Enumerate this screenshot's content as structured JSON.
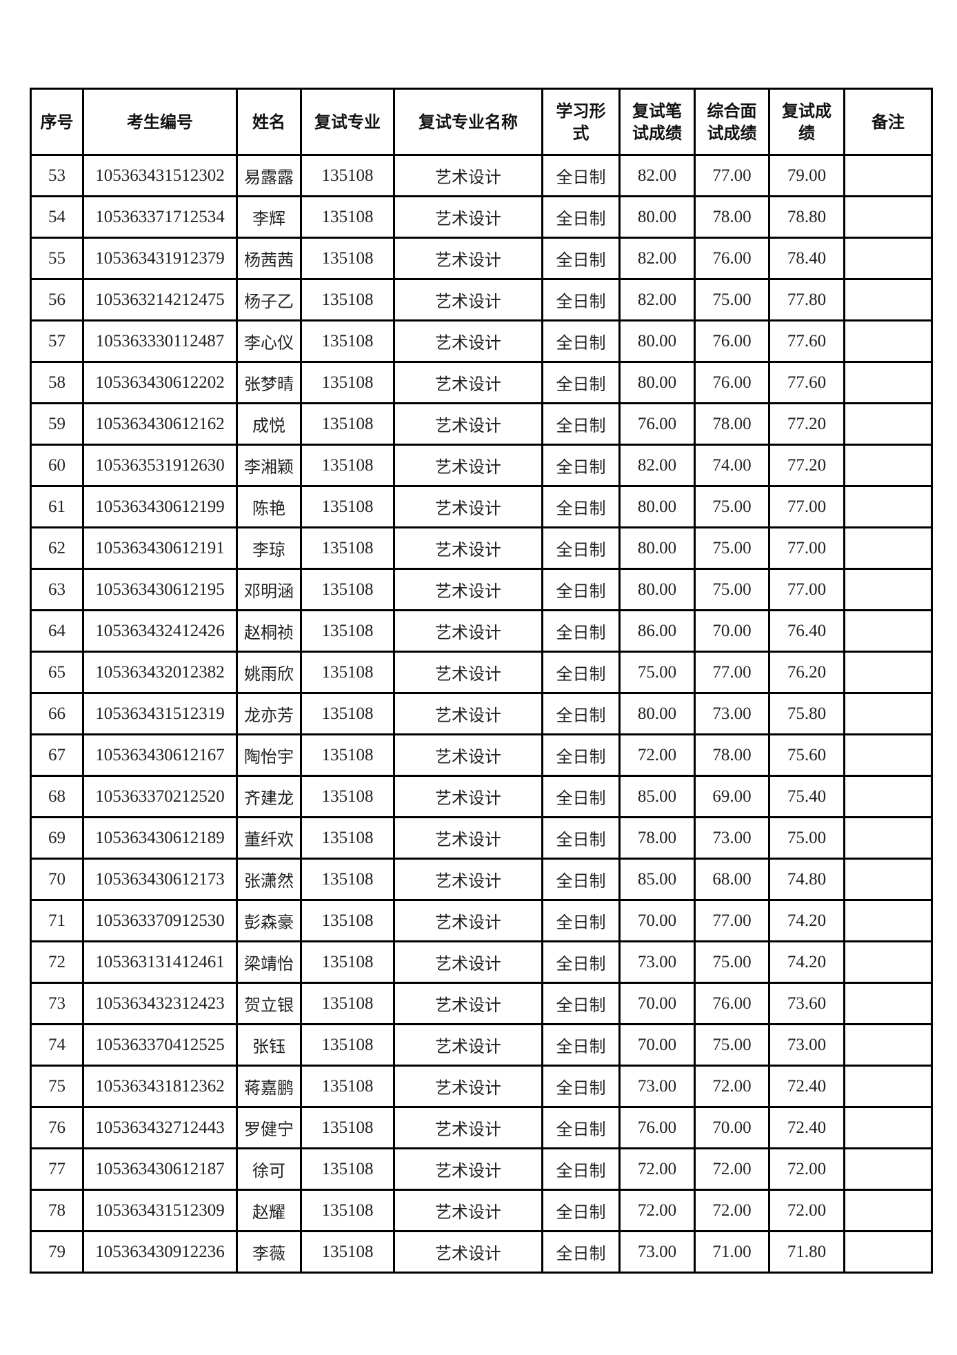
{
  "table": {
    "headers": [
      "序号",
      "考生编号",
      "姓名",
      "复试专业",
      "复试专业名称",
      "学习形式",
      "复试笔试成绩",
      "综合面试成绩",
      "复试成绩",
      "备注"
    ],
    "header_lines": [
      [
        "序号"
      ],
      [
        "考生编号"
      ],
      [
        "姓名"
      ],
      [
        "复试专业"
      ],
      [
        "复试专业名称"
      ],
      [
        "学习形",
        "式"
      ],
      [
        "复试笔",
        "试成绩"
      ],
      [
        "综合面",
        "试成绩"
      ],
      [
        "复试成",
        "绩"
      ],
      [
        "备注"
      ]
    ],
    "rows": [
      [
        "53",
        "105363431512302",
        "易露露",
        "135108",
        "艺术设计",
        "全日制",
        "82.00",
        "77.00",
        "79.00",
        ""
      ],
      [
        "54",
        "105363371712534",
        "李辉",
        "135108",
        "艺术设计",
        "全日制",
        "80.00",
        "78.00",
        "78.80",
        ""
      ],
      [
        "55",
        "105363431912379",
        "杨茜茜",
        "135108",
        "艺术设计",
        "全日制",
        "82.00",
        "76.00",
        "78.40",
        ""
      ],
      [
        "56",
        "105363214212475",
        "杨子乙",
        "135108",
        "艺术设计",
        "全日制",
        "82.00",
        "75.00",
        "77.80",
        ""
      ],
      [
        "57",
        "105363330112487",
        "李心仪",
        "135108",
        "艺术设计",
        "全日制",
        "80.00",
        "76.00",
        "77.60",
        ""
      ],
      [
        "58",
        "105363430612202",
        "张梦晴",
        "135108",
        "艺术设计",
        "全日制",
        "80.00",
        "76.00",
        "77.60",
        ""
      ],
      [
        "59",
        "105363430612162",
        "成悦",
        "135108",
        "艺术设计",
        "全日制",
        "76.00",
        "78.00",
        "77.20",
        ""
      ],
      [
        "60",
        "105363531912630",
        "李湘颖",
        "135108",
        "艺术设计",
        "全日制",
        "82.00",
        "74.00",
        "77.20",
        ""
      ],
      [
        "61",
        "105363430612199",
        "陈艳",
        "135108",
        "艺术设计",
        "全日制",
        "80.00",
        "75.00",
        "77.00",
        ""
      ],
      [
        "62",
        "105363430612191",
        "李琼",
        "135108",
        "艺术设计",
        "全日制",
        "80.00",
        "75.00",
        "77.00",
        ""
      ],
      [
        "63",
        "105363430612195",
        "邓明涵",
        "135108",
        "艺术设计",
        "全日制",
        "80.00",
        "75.00",
        "77.00",
        ""
      ],
      [
        "64",
        "105363432412426",
        "赵桐祯",
        "135108",
        "艺术设计",
        "全日制",
        "86.00",
        "70.00",
        "76.40",
        ""
      ],
      [
        "65",
        "105363432012382",
        "姚雨欣",
        "135108",
        "艺术设计",
        "全日制",
        "75.00",
        "77.00",
        "76.20",
        ""
      ],
      [
        "66",
        "105363431512319",
        "龙亦芳",
        "135108",
        "艺术设计",
        "全日制",
        "80.00",
        "73.00",
        "75.80",
        ""
      ],
      [
        "67",
        "105363430612167",
        "陶怡宇",
        "135108",
        "艺术设计",
        "全日制",
        "72.00",
        "78.00",
        "75.60",
        ""
      ],
      [
        "68",
        "105363370212520",
        "齐建龙",
        "135108",
        "艺术设计",
        "全日制",
        "85.00",
        "69.00",
        "75.40",
        ""
      ],
      [
        "69",
        "105363430612189",
        "董纤欢",
        "135108",
        "艺术设计",
        "全日制",
        "78.00",
        "73.00",
        "75.00",
        ""
      ],
      [
        "70",
        "105363430612173",
        "张潇然",
        "135108",
        "艺术设计",
        "全日制",
        "85.00",
        "68.00",
        "74.80",
        ""
      ],
      [
        "71",
        "105363370912530",
        "彭森豪",
        "135108",
        "艺术设计",
        "全日制",
        "70.00",
        "77.00",
        "74.20",
        ""
      ],
      [
        "72",
        "105363131412461",
        "梁靖怡",
        "135108",
        "艺术设计",
        "全日制",
        "73.00",
        "75.00",
        "74.20",
        ""
      ],
      [
        "73",
        "105363432312423",
        "贺立银",
        "135108",
        "艺术设计",
        "全日制",
        "70.00",
        "76.00",
        "73.60",
        ""
      ],
      [
        "74",
        "105363370412525",
        "张钰",
        "135108",
        "艺术设计",
        "全日制",
        "70.00",
        "75.00",
        "73.00",
        ""
      ],
      [
        "75",
        "105363431812362",
        "蒋嘉鹏",
        "135108",
        "艺术设计",
        "全日制",
        "73.00",
        "72.00",
        "72.40",
        ""
      ],
      [
        "76",
        "105363432712443",
        "罗健宁",
        "135108",
        "艺术设计",
        "全日制",
        "76.00",
        "70.00",
        "72.40",
        ""
      ],
      [
        "77",
        "105363430612187",
        "徐可",
        "135108",
        "艺术设计",
        "全日制",
        "72.00",
        "72.00",
        "72.00",
        ""
      ],
      [
        "78",
        "105363431512309",
        "赵耀",
        "135108",
        "艺术设计",
        "全日制",
        "72.00",
        "72.00",
        "72.00",
        ""
      ],
      [
        "79",
        "105363430912236",
        "李薇",
        "135108",
        "艺术设计",
        "全日制",
        "73.00",
        "71.00",
        "71.80",
        ""
      ]
    ]
  }
}
